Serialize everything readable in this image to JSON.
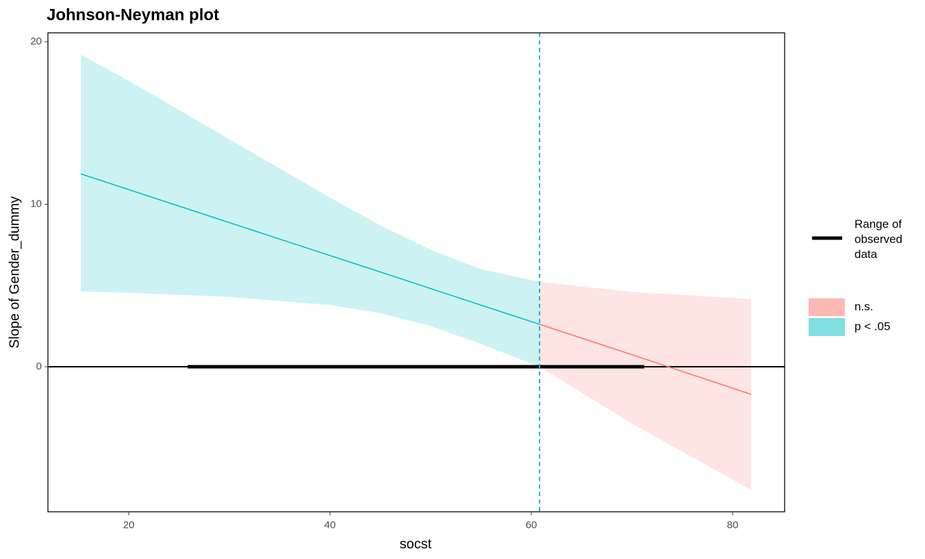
{
  "chart_data": {
    "type": "line",
    "title": "Johnson-Neyman plot",
    "x_label": "socst",
    "y_label": "Slope of Gender_dummy",
    "xlim": [
      11.97,
      85.17
    ],
    "ylim": [
      -8.93,
      20.55
    ],
    "xticks": [
      20,
      40,
      60,
      80
    ],
    "yticks": [
      0,
      10,
      20
    ],
    "grid": false,
    "hline": 0,
    "threshold": 60.82,
    "observed_range": {
      "name": "Range of observed data",
      "x": [
        25.85,
        71.22
      ]
    },
    "series": [
      {
        "name": "n.s.",
        "color": "#F8766D",
        "x": [
          60.82,
          70,
          81.84
        ],
        "values": [
          2.61,
          0.74,
          -1.7
        ],
        "lower": [
          0,
          -3.5,
          -7.58
        ],
        "upper": [
          5.22,
          4.6,
          4.17
        ]
      },
      {
        "name": "p < .05",
        "color": "#00BFC4",
        "x": [
          15.24,
          20,
          30,
          40,
          45,
          50,
          55,
          60.82
        ],
        "values": [
          11.87,
          10.9,
          8.87,
          6.84,
          5.83,
          4.81,
          3.79,
          2.61
        ],
        "lower": [
          4.63,
          4.55,
          4.3,
          3.8,
          3.3,
          2.5,
          1.4,
          0
        ],
        "upper": [
          19.2,
          17.6,
          14.0,
          10.4,
          8.7,
          7.2,
          6.0,
          5.22
        ]
      }
    ]
  }
}
